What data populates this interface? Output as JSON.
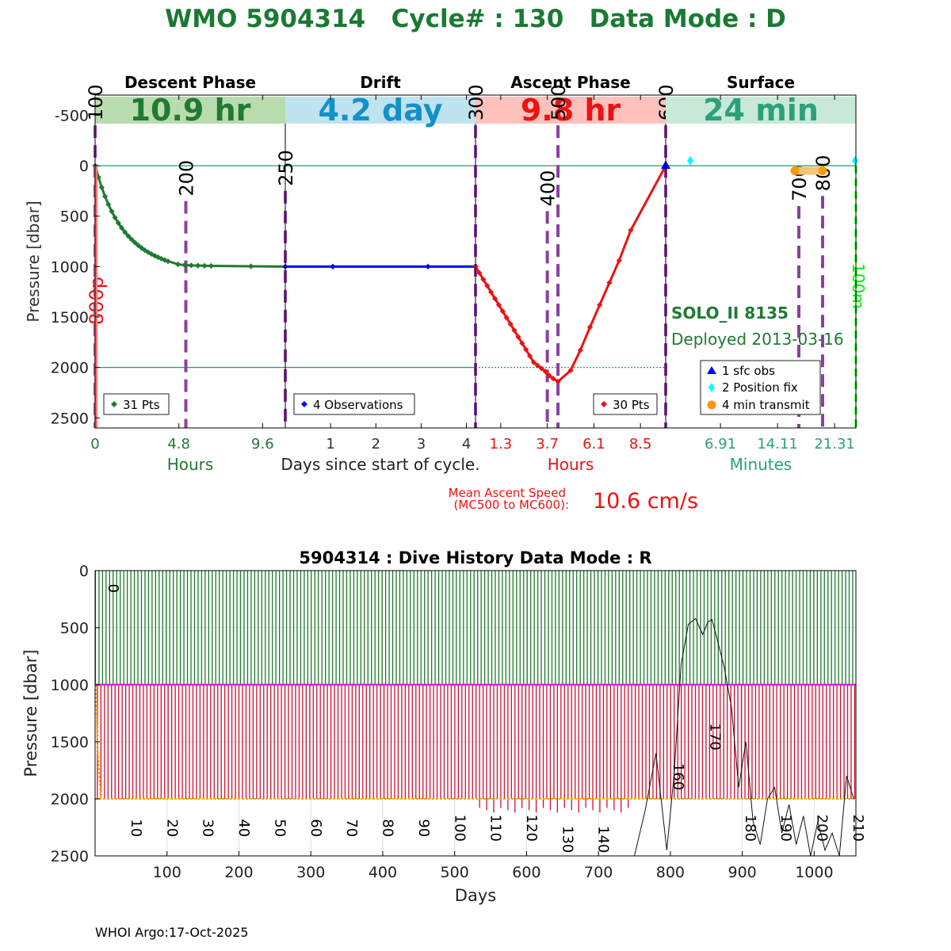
{
  "title": "WMO 5904314   Cycle# : 130   Data Mode : D",
  "colors": {
    "title": "#1a7a33",
    "descent": "#1f7a33",
    "drift": "#0000ff",
    "ascent": "#ee1111",
    "surface": "#2aa17a",
    "marker_line": "#8b3fa0",
    "descent_band": "#b9dcae",
    "drift_band": "#bfe3ef",
    "ascent_band": "#ffc1bc",
    "surface_band": "#c8e9d8",
    "drift_band_text": "#1590c9",
    "position_fix": "#00ffff",
    "transmit": "#ff9900",
    "sfc_obs": "#0000ff",
    "green_dash": "#00ee00",
    "hist_green": "#1c7a2a",
    "hist_red": "#cc1133",
    "hist_magenta": "#e020e0",
    "hist_orange": "#ffa500"
  },
  "phases": [
    {
      "key": "descent",
      "name": "Descent Phase",
      "duration": "10.9 hr"
    },
    {
      "key": "drift",
      "name": "Drift",
      "duration": "4.2 day"
    },
    {
      "key": "ascent",
      "name": "Ascent Phase",
      "duration": "9.8 hr"
    },
    {
      "key": "surface",
      "name": "Surface",
      "duration": "24 min"
    }
  ],
  "chart_data": [
    {
      "type": "line",
      "title": "Cycle 130 dive profile",
      "ylabel": "Pressure [dbar]",
      "ylim": [
        -700,
        2600
      ],
      "yticks": [
        -500,
        0,
        500,
        1000,
        1500,
        2000,
        2500
      ],
      "ref_lines": [
        0,
        2000
      ],
      "xlabel_center": "Days since start of cycle.",
      "panels": [
        {
          "key": "descent",
          "xlabel": "Hours",
          "xlim": [
            0,
            10.9
          ],
          "xticks": [
            0,
            4.8,
            9.6
          ],
          "xtick_labels": [
            "0",
            "4.8",
            "9.6"
          ],
          "legend": "31 Pts",
          "mission_markers": [
            {
              "label": "100",
              "x": 0,
              "ystart": -400
            },
            {
              "label": "200",
              "x": 5.2,
              "ystart": 350
            }
          ],
          "series": {
            "x": [
              0,
              0.19,
              0.38,
              0.57,
              0.76,
              0.95,
              1.14,
              1.33,
              1.52,
              1.71,
              1.9,
              2.09,
              2.28,
              2.47,
              2.66,
              2.85,
              3.04,
              3.23,
              3.42,
              3.61,
              3.8,
              3.99,
              4.18,
              4.75,
              5.13,
              5.51,
              5.89,
              6.27,
              6.65,
              8.93,
              10.9
            ],
            "y": [
              0,
              114,
              215,
              304,
              383,
              452,
              514,
              568,
              616,
              659,
              697,
              731,
              762,
              790,
              815,
              838,
              858,
              876,
              893,
              908,
              922,
              935,
              947,
              978,
              985,
              988,
              990,
              992,
              993,
              997,
              1000
            ]
          }
        },
        {
          "key": "drift",
          "xlabel": "",
          "xlim": [
            0,
            4.2
          ],
          "xticks": [
            1,
            2,
            3,
            4
          ],
          "xtick_labels": [
            "1",
            "2",
            "3",
            "4"
          ],
          "legend": "4 Observations",
          "mission_markers": [
            {
              "label": "250",
              "x": 0,
              "ystart": 250
            }
          ],
          "series": {
            "x": [
              0,
              1.05,
              3.15,
              4.2
            ],
            "y": [
              1000,
              1000,
              1000,
              1000
            ]
          }
        },
        {
          "key": "ascent",
          "xlabel": "Hours",
          "xlim": [
            0,
            9.8
          ],
          "xticks": [
            1.3,
            3.7,
            6.1,
            8.5
          ],
          "xtick_labels": [
            "1.3",
            "3.7",
            "6.1",
            "8.5"
          ],
          "legend": "30 Pts",
          "mission_markers": [
            {
              "label": "300",
              "x": 0,
              "ystart": -400
            },
            {
              "label": "400",
              "x": 3.7,
              "ystart": 450
            },
            {
              "label": "500",
              "x": 4.25,
              "ystart": -400
            },
            {
              "label": "600",
              "x": 9.8,
              "ystart": -400
            }
          ],
          "series": {
            "x": [
              0,
              0.2,
              0.4,
              0.6,
              0.8,
              1.0,
              1.2,
              1.4,
              1.6,
              1.8,
              2.0,
              2.2,
              2.4,
              2.6,
              2.8,
              3.0,
              3.2,
              3.4,
              3.6,
              3.8,
              4.0,
              4.25,
              4.9,
              5.4,
              5.9,
              6.4,
              6.9,
              7.4,
              8.0,
              9.8
            ],
            "y": [
              1000,
              1063,
              1127,
              1190,
              1253,
              1317,
              1380,
              1443,
              1507,
              1570,
              1633,
              1697,
              1760,
              1823,
              1887,
              1950,
              1980,
              2010,
              2040,
              2080,
              2110,
              2140,
              2030,
              1830,
              1600,
              1380,
              1160,
              940,
              640,
              0
            ]
          }
        },
        {
          "key": "surface",
          "xlabel": "Minutes",
          "xlim": [
            0,
            24
          ],
          "xticks": [
            6.91,
            14.11,
            21.31
          ],
          "xtick_labels": [
            "6.91",
            "14.11",
            "21.31"
          ],
          "mission_markers": [
            {
              "label": "700",
              "x": 16.8,
              "ystart": 400
            },
            {
              "label": "800",
              "x": 19.8,
              "ystart": 300
            },
            {
              "label": "100m",
              "x": 24,
              "ystart": 0
            }
          ],
          "legend_entries": [
            "1 sfc obs",
            "2 Position fix",
            "4 min transmit"
          ],
          "position_fix": {
            "x": [
              3.1,
              23.9
            ],
            "y": [
              -50,
              -50
            ]
          },
          "transmit": {
            "x": [
              16.3,
              19.8
            ],
            "y": [
              50,
              50
            ]
          },
          "sfc_obs": {
            "x": [
              0
            ],
            "y": [
              0
            ]
          },
          "float_label": "SOLO_II 8135",
          "deploy_label": "Deployed 2013-03-16",
          "side_label": "800p"
        }
      ]
    },
    {
      "type": "line",
      "title": "5904314 : Dive History      Data Mode : R",
      "xlabel": "Days",
      "ylabel": "Pressure [dbar]",
      "xlim": [
        0,
        1058
      ],
      "ylim": [
        0,
        2500
      ],
      "xticks": [
        100,
        200,
        300,
        400,
        500,
        600,
        700,
        800,
        900,
        1000
      ],
      "yticks": [
        0,
        500,
        1000,
        1500,
        2000,
        2500
      ],
      "cycle_count": 215,
      "park_pressure": 1000,
      "profile_pressure": 2000,
      "cycle_labels": [
        {
          "label": "0",
          "x": 1,
          "y": 100
        },
        {
          "label": "10",
          "x": 33,
          "y": 2200
        },
        {
          "label": "20",
          "x": 83,
          "y": 2200
        },
        {
          "label": "30",
          "x": 133,
          "y": 2200
        },
        {
          "label": "40",
          "x": 183,
          "y": 2200
        },
        {
          "label": "50",
          "x": 233,
          "y": 2200
        },
        {
          "label": "60",
          "x": 283,
          "y": 2200
        },
        {
          "label": "70",
          "x": 333,
          "y": 2200
        },
        {
          "label": "80",
          "x": 383,
          "y": 2200
        },
        {
          "label": "90",
          "x": 433,
          "y": 2200
        },
        {
          "label": "100",
          "x": 483,
          "y": 2200
        },
        {
          "label": "110",
          "x": 533,
          "y": 2200
        },
        {
          "label": "120",
          "x": 583,
          "y": 2200
        },
        {
          "label": "130",
          "x": 633,
          "y": 2300
        },
        {
          "label": "140",
          "x": 683,
          "y": 2300
        },
        {
          "label": "160",
          "x": 787,
          "y": 1750
        },
        {
          "label": "170",
          "x": 838,
          "y": 1400
        },
        {
          "label": "180",
          "x": 887,
          "y": 2200
        },
        {
          "label": "190",
          "x": 937,
          "y": 2200
        },
        {
          "label": "200",
          "x": 987,
          "y": 2200
        },
        {
          "label": "210",
          "x": 1037,
          "y": 2200
        }
      ],
      "surface_trace": {
        "x": [
          750,
          765,
          780,
          795,
          805,
          815,
          825,
          835,
          845,
          852,
          858,
          865,
          875,
          885,
          895,
          905,
          915,
          925,
          935,
          945,
          955,
          965,
          975,
          985,
          995,
          1005,
          1015,
          1025,
          1035,
          1045,
          1055
        ],
        "y": [
          2500,
          2100,
          1600,
          2450,
          1800,
          820,
          470,
          420,
          560,
          450,
          430,
          600,
          850,
          1200,
          1900,
          1500,
          2200,
          2400,
          2000,
          1900,
          2300,
          2050,
          2400,
          2150,
          2500,
          2200,
          2450,
          2300,
          2500,
          1800,
          2000
        ]
      }
    }
  ],
  "footer": "WHOI Argo:17-Oct-2025",
  "ascent_speed": {
    "label_line1": "Mean Ascent Speed",
    "label_line2": "(MC500 to MC600):",
    "value": "10.6 cm/s"
  }
}
